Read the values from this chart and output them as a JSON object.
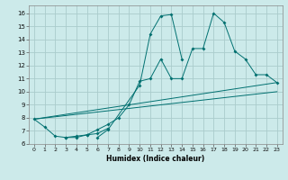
{
  "background_color": "#cceaea",
  "grid_color": "#aacccc",
  "line_color": "#007070",
  "xlabel": "Humidex (Indice chaleur)",
  "xlim": [
    -0.5,
    23.5
  ],
  "ylim": [
    6.0,
    16.6
  ],
  "yticks": [
    6,
    7,
    8,
    9,
    10,
    11,
    12,
    13,
    14,
    15,
    16
  ],
  "xticks": [
    0,
    1,
    2,
    3,
    4,
    5,
    6,
    7,
    8,
    9,
    10,
    11,
    12,
    13,
    14,
    15,
    16,
    17,
    18,
    19,
    20,
    21,
    22,
    23
  ],
  "series": [
    {
      "x": [
        0,
        1,
        2,
        3,
        4,
        5,
        6,
        7
      ],
      "y": [
        7.9,
        7.3,
        6.6,
        6.5,
        6.5,
        6.7,
        6.8,
        7.2
      ],
      "no_markers": false
    },
    {
      "x": [
        3,
        4,
        5,
        6,
        7,
        8,
        9,
        10,
        11,
        12,
        13,
        14,
        15,
        16,
        17,
        18,
        19,
        20,
        21,
        22,
        23
      ],
      "y": [
        6.5,
        6.6,
        6.7,
        7.1,
        7.5,
        8.0,
        9.0,
        10.8,
        11.0,
        12.5,
        11.0,
        11.0,
        13.3,
        13.3,
        16.0,
        15.3,
        13.1,
        12.5,
        11.3,
        11.3,
        10.7
      ],
      "no_markers": false
    },
    {
      "x": [
        6,
        7,
        10,
        11,
        12,
        13,
        14
      ],
      "y": [
        6.5,
        7.1,
        10.5,
        14.4,
        15.8,
        15.9,
        12.5
      ],
      "no_markers": false
    },
    {
      "x": [
        0,
        23
      ],
      "y": [
        7.9,
        10.7
      ],
      "no_markers": true
    },
    {
      "x": [
        0,
        23
      ],
      "y": [
        7.9,
        10.0
      ],
      "no_markers": true
    }
  ]
}
